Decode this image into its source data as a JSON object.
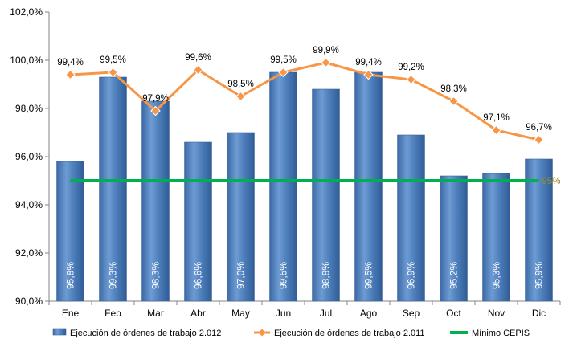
{
  "chart_data": {
    "type": "bar",
    "categories": [
      "Ene",
      "Feb",
      "Mar",
      "Abr",
      "May",
      "Jun",
      "Jul",
      "Ago",
      "Sep",
      "Oct",
      "Nov",
      "Dic"
    ],
    "series": [
      {
        "name": "Ejecución de órdenes de trabajo 2.012",
        "type": "bar",
        "color": "#4f81bd",
        "values": [
          95.8,
          99.3,
          98.3,
          96.6,
          97.0,
          99.5,
          98.8,
          99.5,
          96.9,
          95.2,
          95.3,
          95.9
        ],
        "labels": [
          "95,8%",
          "99,3%",
          "98,3%",
          "96,6%",
          "97,0%",
          "99,5%",
          "98,8%",
          "99,5%",
          "96,9%",
          "95,2%",
          "95,3%",
          "95,9%"
        ]
      },
      {
        "name": "Ejecución de órdenes de trabajo 2.011",
        "type": "line",
        "color": "#f79646",
        "values": [
          99.4,
          99.5,
          97.9,
          99.6,
          98.5,
          99.5,
          99.9,
          99.4,
          99.2,
          98.3,
          97.1,
          96.7
        ],
        "labels": [
          "99,4%",
          "99,5%",
          "97,9%",
          "99,6%",
          "98,5%",
          "99,5%",
          "99,9%",
          "99,4%",
          "99,2%",
          "98,3%",
          "97,1%",
          "96,7%"
        ]
      },
      {
        "name": "Mínimo CEPIS",
        "type": "line",
        "color": "#00b050",
        "values": [
          95,
          95,
          95,
          95,
          95,
          95,
          95,
          95,
          95,
          95,
          95,
          95
        ],
        "end_label": "95%"
      }
    ],
    "ylim": [
      90,
      102
    ],
    "yticks": [
      90,
      92,
      94,
      96,
      98,
      100,
      102
    ],
    "ytick_labels": [
      "90,0%",
      "92,0%",
      "94,0%",
      "96,0%",
      "98,0%",
      "100,0%",
      "102,0%"
    ],
    "legend_position": "bottom",
    "grid": false
  }
}
